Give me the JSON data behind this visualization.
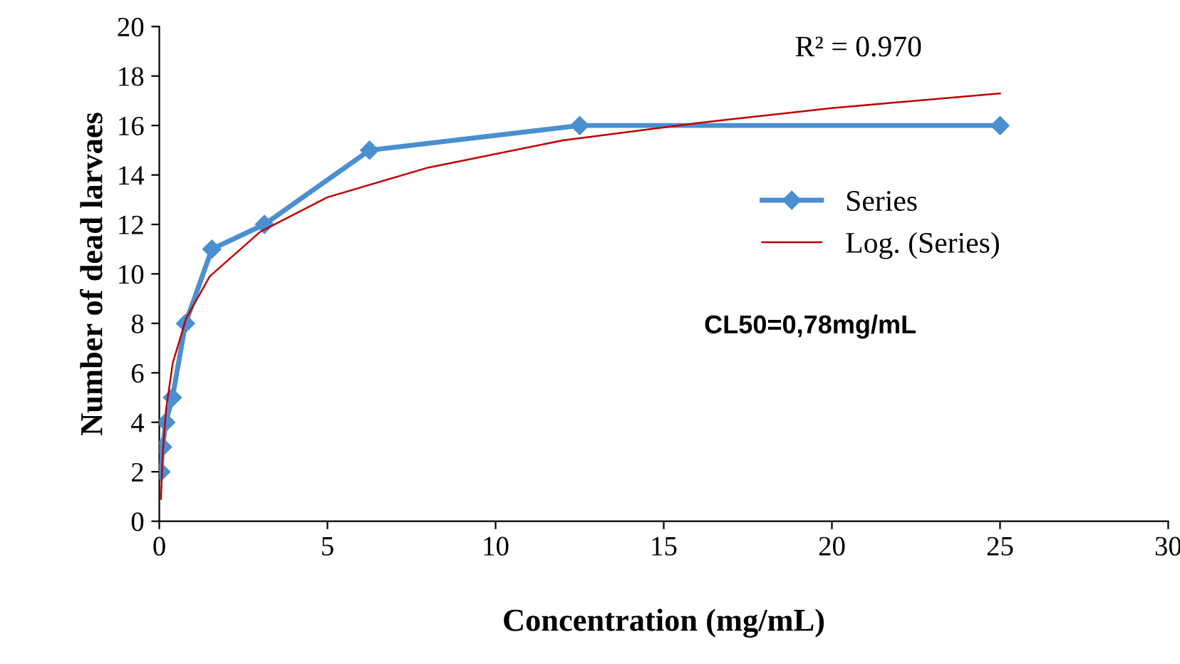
{
  "chart_data": {
    "type": "line",
    "xlabel": "Concentration (mg/mL)",
    "ylabel": "Number of dead larvaes",
    "xlim": [
      0,
      30
    ],
    "xticks": [
      0,
      5,
      10,
      15,
      20,
      25,
      30
    ],
    "ylim": [
      0,
      20
    ],
    "yticks": [
      0,
      2,
      4,
      6,
      8,
      10,
      12,
      14,
      16,
      18,
      20
    ],
    "grid": false,
    "legend": "right",
    "series": [
      {
        "name": "Series",
        "color": "#4a8fd0",
        "marker": "diamond",
        "x": [
          0.049,
          0.098,
          0.195,
          0.39,
          0.78,
          1.5625,
          3.125,
          6.25,
          12.5,
          25
        ],
        "values": [
          2,
          3,
          4,
          5,
          8,
          11,
          12,
          15,
          16,
          16
        ]
      },
      {
        "name": "Log. (Series)",
        "color": "#c00000",
        "marker": "none",
        "x": [
          0.05,
          0.1,
          0.2,
          0.4,
          0.8,
          1.5,
          3,
          5,
          8,
          12,
          16,
          20,
          25
        ],
        "values": [
          0.9,
          2.7,
          4.5,
          6.4,
          8.2,
          9.9,
          11.7,
          13.1,
          14.3,
          15.4,
          16.1,
          16.7,
          17.3
        ]
      }
    ],
    "annotations": [
      "R² = 0.970",
      "CL50=0,78mg/mL"
    ]
  }
}
